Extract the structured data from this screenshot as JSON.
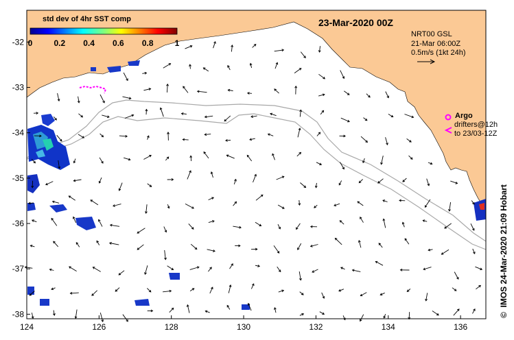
{
  "title": "23-Mar-2020 00Z",
  "colorbar": {
    "label": "std dev of 4hr SST comp",
    "ticks": [
      "0",
      "0.2",
      "0.4",
      "0.6",
      "0.8",
      "1"
    ],
    "colormap": "jet"
  },
  "current_info": {
    "product": "NRT00 GSL",
    "time": "21-Mar 06:00Z",
    "scale": "0.5m/s (1kt 24h)"
  },
  "argo_legend": {
    "argo": "Argo",
    "drifters_line1": "drifters@12h",
    "drifters_line2": "to 23/03-12Z"
  },
  "credit": "IMOS 24-Mar-2020 21:09 Hobart",
  "copyright": "©",
  "axes": {
    "x_ticks": [
      "124",
      "126",
      "128",
      "130",
      "132",
      "134",
      "136"
    ],
    "y_ticks": [
      "-32",
      "-33",
      "-34",
      "-35",
      "-36",
      "-37",
      "-38"
    ],
    "xlim": [
      124,
      136.7
    ],
    "ylim": [
      -38.1,
      -31.3
    ]
  },
  "colors": {
    "land": "#fbc995",
    "ocean": "#ffffff",
    "bathymetry": "#a8a8a8",
    "argo": "#ff00ff",
    "arrows": "#000000"
  }
}
